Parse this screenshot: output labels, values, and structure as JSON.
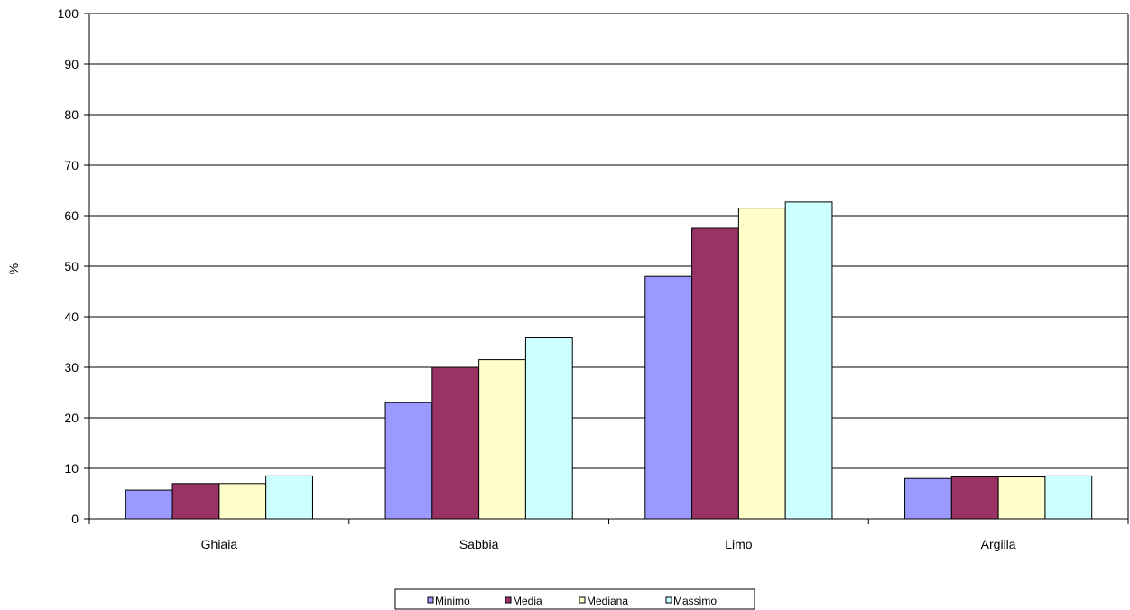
{
  "chart_data": {
    "type": "bar",
    "title": "",
    "xlabel": "",
    "ylabel": "%",
    "ylim": [
      0,
      100
    ],
    "yticks": [
      0,
      10,
      20,
      30,
      40,
      50,
      60,
      70,
      80,
      90,
      100
    ],
    "grid": true,
    "legend_position": "bottom",
    "categories": [
      "Ghiaia",
      "Sabbia",
      "Limo",
      "Argilla"
    ],
    "series": [
      {
        "name": "Minimo",
        "color": "#9999FF",
        "values": [
          5.7,
          23.0,
          48.0,
          8.0
        ]
      },
      {
        "name": "Media",
        "color": "#993366",
        "values": [
          7.0,
          30.0,
          57.5,
          8.3
        ]
      },
      {
        "name": "Mediana",
        "color": "#FFFFCC",
        "values": [
          7.0,
          31.5,
          61.5,
          8.3
        ]
      },
      {
        "name": "Massimo",
        "color": "#CCFFFF",
        "values": [
          8.5,
          35.8,
          62.7,
          8.5
        ]
      }
    ]
  }
}
